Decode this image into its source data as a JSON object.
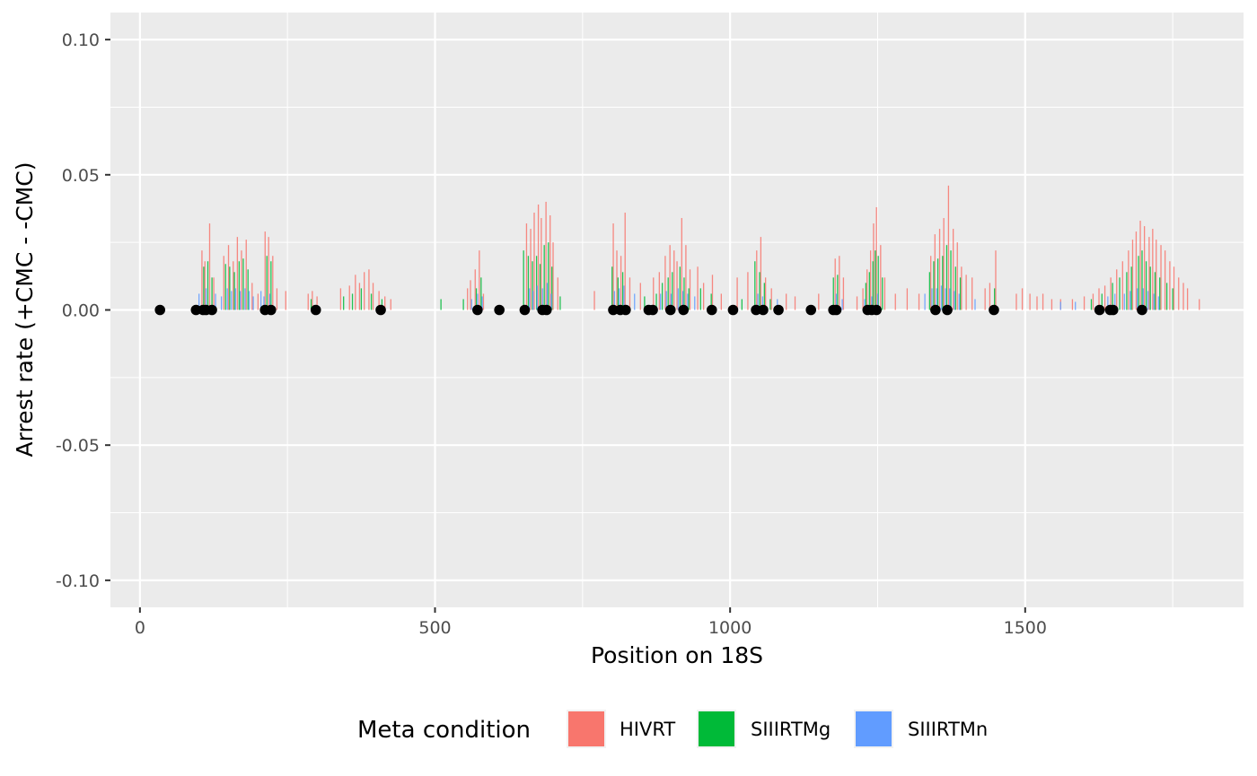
{
  "chart_data": {
    "type": "bar",
    "title": "",
    "xlabel": "Position on 18S",
    "ylabel": "Arrest rate (+CMC - -CMC)",
    "xlim": [
      -50,
      1870
    ],
    "ylim": [
      -0.11,
      0.11
    ],
    "x_ticks": [
      0,
      500,
      1000,
      1500
    ],
    "x_tick_labels": [
      "0",
      "500",
      "1000",
      "1500"
    ],
    "y_ticks": [
      -0.1,
      -0.05,
      0.0,
      0.05,
      0.1
    ],
    "y_tick_labels": [
      "-0.10",
      "-0.05",
      "0.00",
      "0.05",
      "0.10"
    ],
    "grid": true,
    "legend": {
      "title": "Meta condition",
      "position": "bottom",
      "entries": [
        {
          "name": "HIVRT",
          "color": "#F8766D"
        },
        {
          "name": "SIIIRTMg",
          "color": "#00BA38"
        },
        {
          "name": "SIIIRTMn",
          "color": "#619CFF"
        }
      ]
    },
    "series": [
      {
        "name": "HIVRT",
        "color": "#F8766D",
        "points": [
          [
            105,
            0.022
          ],
          [
            110,
            0.018
          ],
          [
            118,
            0.032
          ],
          [
            125,
            0.012
          ],
          [
            142,
            0.02
          ],
          [
            150,
            0.024
          ],
          [
            158,
            0.018
          ],
          [
            165,
            0.027
          ],
          [
            172,
            0.022
          ],
          [
            180,
            0.026
          ],
          [
            190,
            0.01
          ],
          [
            200,
            0.006
          ],
          [
            212,
            0.029
          ],
          [
            218,
            0.027
          ],
          [
            225,
            0.02
          ],
          [
            232,
            0.008
          ],
          [
            247,
            0.007
          ],
          [
            285,
            0.006
          ],
          [
            292,
            0.007
          ],
          [
            300,
            0.005
          ],
          [
            340,
            0.008
          ],
          [
            355,
            0.009
          ],
          [
            365,
            0.013
          ],
          [
            372,
            0.01
          ],
          [
            380,
            0.014
          ],
          [
            388,
            0.015
          ],
          [
            395,
            0.01
          ],
          [
            405,
            0.007
          ],
          [
            415,
            0.005
          ],
          [
            425,
            0.004
          ],
          [
            555,
            0.008
          ],
          [
            560,
            0.011
          ],
          [
            568,
            0.015
          ],
          [
            575,
            0.022
          ],
          [
            582,
            0.006
          ],
          [
            655,
            0.032
          ],
          [
            662,
            0.03
          ],
          [
            668,
            0.036
          ],
          [
            675,
            0.039
          ],
          [
            680,
            0.034
          ],
          [
            688,
            0.04
          ],
          [
            695,
            0.035
          ],
          [
            700,
            0.025
          ],
          [
            708,
            0.012
          ],
          [
            770,
            0.007
          ],
          [
            802,
            0.032
          ],
          [
            808,
            0.022
          ],
          [
            815,
            0.02
          ],
          [
            822,
            0.036
          ],
          [
            830,
            0.012
          ],
          [
            848,
            0.01
          ],
          [
            870,
            0.012
          ],
          [
            880,
            0.014
          ],
          [
            890,
            0.02
          ],
          [
            898,
            0.024
          ],
          [
            905,
            0.022
          ],
          [
            910,
            0.018
          ],
          [
            918,
            0.034
          ],
          [
            925,
            0.024
          ],
          [
            932,
            0.015
          ],
          [
            945,
            0.016
          ],
          [
            955,
            0.01
          ],
          [
            970,
            0.013
          ],
          [
            985,
            0.006
          ],
          [
            1012,
            0.012
          ],
          [
            1030,
            0.014
          ],
          [
            1045,
            0.022
          ],
          [
            1052,
            0.027
          ],
          [
            1060,
            0.012
          ],
          [
            1070,
            0.008
          ],
          [
            1095,
            0.006
          ],
          [
            1110,
            0.005
          ],
          [
            1150,
            0.006
          ],
          [
            1178,
            0.019
          ],
          [
            1185,
            0.02
          ],
          [
            1192,
            0.012
          ],
          [
            1215,
            0.005
          ],
          [
            1225,
            0.008
          ],
          [
            1232,
            0.015
          ],
          [
            1238,
            0.022
          ],
          [
            1243,
            0.032
          ],
          [
            1248,
            0.038
          ],
          [
            1255,
            0.024
          ],
          [
            1262,
            0.012
          ],
          [
            1280,
            0.006
          ],
          [
            1300,
            0.008
          ],
          [
            1320,
            0.006
          ],
          [
            1340,
            0.02
          ],
          [
            1347,
            0.028
          ],
          [
            1355,
            0.03
          ],
          [
            1362,
            0.034
          ],
          [
            1370,
            0.046
          ],
          [
            1378,
            0.03
          ],
          [
            1385,
            0.025
          ],
          [
            1392,
            0.016
          ],
          [
            1400,
            0.013
          ],
          [
            1410,
            0.012
          ],
          [
            1432,
            0.008
          ],
          [
            1440,
            0.01
          ],
          [
            1450,
            0.022
          ],
          [
            1485,
            0.006
          ],
          [
            1495,
            0.008
          ],
          [
            1508,
            0.006
          ],
          [
            1520,
            0.005
          ],
          [
            1530,
            0.006
          ],
          [
            1545,
            0.004
          ],
          [
            1560,
            0.004
          ],
          [
            1580,
            0.004
          ],
          [
            1600,
            0.005
          ],
          [
            1615,
            0.006
          ],
          [
            1625,
            0.008
          ],
          [
            1635,
            0.009
          ],
          [
            1645,
            0.012
          ],
          [
            1655,
            0.015
          ],
          [
            1665,
            0.018
          ],
          [
            1675,
            0.022
          ],
          [
            1682,
            0.026
          ],
          [
            1688,
            0.029
          ],
          [
            1695,
            0.033
          ],
          [
            1702,
            0.031
          ],
          [
            1710,
            0.027
          ],
          [
            1716,
            0.03
          ],
          [
            1722,
            0.026
          ],
          [
            1730,
            0.024
          ],
          [
            1737,
            0.022
          ],
          [
            1745,
            0.018
          ],
          [
            1752,
            0.016
          ],
          [
            1760,
            0.012
          ],
          [
            1768,
            0.01
          ],
          [
            1775,
            0.008
          ],
          [
            1795,
            0.004
          ]
        ]
      },
      {
        "name": "SIIIRTMg",
        "color": "#00BA38",
        "points": [
          [
            108,
            0.016
          ],
          [
            115,
            0.018
          ],
          [
            122,
            0.012
          ],
          [
            145,
            0.017
          ],
          [
            152,
            0.016
          ],
          [
            160,
            0.014
          ],
          [
            168,
            0.018
          ],
          [
            175,
            0.019
          ],
          [
            183,
            0.015
          ],
          [
            215,
            0.02
          ],
          [
            222,
            0.018
          ],
          [
            290,
            0.004
          ],
          [
            345,
            0.005
          ],
          [
            360,
            0.006
          ],
          [
            375,
            0.008
          ],
          [
            392,
            0.006
          ],
          [
            410,
            0.004
          ],
          [
            510,
            0.004
          ],
          [
            548,
            0.004
          ],
          [
            570,
            0.008
          ],
          [
            578,
            0.012
          ],
          [
            650,
            0.022
          ],
          [
            658,
            0.02
          ],
          [
            665,
            0.018
          ],
          [
            672,
            0.02
          ],
          [
            678,
            0.017
          ],
          [
            685,
            0.024
          ],
          [
            692,
            0.025
          ],
          [
            698,
            0.016
          ],
          [
            712,
            0.005
          ],
          [
            800,
            0.016
          ],
          [
            810,
            0.012
          ],
          [
            818,
            0.014
          ],
          [
            855,
            0.005
          ],
          [
            875,
            0.006
          ],
          [
            885,
            0.01
          ],
          [
            895,
            0.012
          ],
          [
            902,
            0.014
          ],
          [
            915,
            0.016
          ],
          [
            922,
            0.012
          ],
          [
            930,
            0.008
          ],
          [
            950,
            0.008
          ],
          [
            968,
            0.006
          ],
          [
            1020,
            0.004
          ],
          [
            1042,
            0.018
          ],
          [
            1050,
            0.014
          ],
          [
            1058,
            0.01
          ],
          [
            1068,
            0.004
          ],
          [
            1175,
            0.012
          ],
          [
            1182,
            0.013
          ],
          [
            1230,
            0.01
          ],
          [
            1236,
            0.014
          ],
          [
            1242,
            0.018
          ],
          [
            1246,
            0.022
          ],
          [
            1251,
            0.02
          ],
          [
            1258,
            0.012
          ],
          [
            1338,
            0.014
          ],
          [
            1345,
            0.018
          ],
          [
            1352,
            0.019
          ],
          [
            1360,
            0.02
          ],
          [
            1367,
            0.024
          ],
          [
            1374,
            0.022
          ],
          [
            1382,
            0.016
          ],
          [
            1390,
            0.012
          ],
          [
            1448,
            0.008
          ],
          [
            1612,
            0.004
          ],
          [
            1630,
            0.006
          ],
          [
            1648,
            0.01
          ],
          [
            1660,
            0.012
          ],
          [
            1672,
            0.014
          ],
          [
            1680,
            0.016
          ],
          [
            1692,
            0.02
          ],
          [
            1698,
            0.022
          ],
          [
            1705,
            0.018
          ],
          [
            1712,
            0.016
          ],
          [
            1720,
            0.014
          ],
          [
            1728,
            0.012
          ],
          [
            1740,
            0.01
          ],
          [
            1750,
            0.008
          ]
        ]
      },
      {
        "name": "SIIIRTMn",
        "color": "#619CFF",
        "points": [
          [
            100,
            0.006
          ],
          [
            112,
            0.008
          ],
          [
            128,
            0.006
          ],
          [
            138,
            0.005
          ],
          [
            148,
            0.008
          ],
          [
            155,
            0.007
          ],
          [
            162,
            0.008
          ],
          [
            170,
            0.007
          ],
          [
            178,
            0.008
          ],
          [
            185,
            0.007
          ],
          [
            192,
            0.005
          ],
          [
            205,
            0.007
          ],
          [
            210,
            0.005
          ],
          [
            220,
            0.006
          ],
          [
            562,
            0.004
          ],
          [
            572,
            0.006
          ],
          [
            580,
            0.005
          ],
          [
            660,
            0.008
          ],
          [
            666,
            0.007
          ],
          [
            673,
            0.009
          ],
          [
            682,
            0.008
          ],
          [
            690,
            0.01
          ],
          [
            697,
            0.006
          ],
          [
            804,
            0.007
          ],
          [
            812,
            0.008
          ],
          [
            820,
            0.009
          ],
          [
            838,
            0.006
          ],
          [
            882,
            0.006
          ],
          [
            892,
            0.007
          ],
          [
            900,
            0.006
          ],
          [
            912,
            0.008
          ],
          [
            920,
            0.007
          ],
          [
            928,
            0.006
          ],
          [
            940,
            0.005
          ],
          [
            1047,
            0.006
          ],
          [
            1055,
            0.005
          ],
          [
            1080,
            0.004
          ],
          [
            1180,
            0.006
          ],
          [
            1190,
            0.004
          ],
          [
            1228,
            0.004
          ],
          [
            1240,
            0.005
          ],
          [
            1250,
            0.006
          ],
          [
            1330,
            0.006
          ],
          [
            1342,
            0.008
          ],
          [
            1350,
            0.008
          ],
          [
            1358,
            0.009
          ],
          [
            1365,
            0.008
          ],
          [
            1372,
            0.008
          ],
          [
            1380,
            0.007
          ],
          [
            1388,
            0.006
          ],
          [
            1415,
            0.004
          ],
          [
            1560,
            0.003
          ],
          [
            1585,
            0.003
          ],
          [
            1640,
            0.005
          ],
          [
            1652,
            0.006
          ],
          [
            1668,
            0.006
          ],
          [
            1678,
            0.007
          ],
          [
            1690,
            0.008
          ],
          [
            1700,
            0.008
          ],
          [
            1708,
            0.007
          ],
          [
            1718,
            0.006
          ],
          [
            1726,
            0.005
          ]
        ]
      },
      {
        "name": "",
        "type": "scatter",
        "color": "#000000",
        "points": [
          [
            34,
            0
          ],
          [
            95,
            0
          ],
          [
            107,
            0
          ],
          [
            112,
            0
          ],
          [
            122,
            0
          ],
          [
            212,
            0
          ],
          [
            222,
            0
          ],
          [
            298,
            0
          ],
          [
            408,
            0
          ],
          [
            572,
            0
          ],
          [
            609,
            0
          ],
          [
            652,
            0
          ],
          [
            682,
            0
          ],
          [
            689,
            0
          ],
          [
            802,
            0
          ],
          [
            814,
            0
          ],
          [
            823,
            0
          ],
          [
            862,
            0
          ],
          [
            869,
            0
          ],
          [
            899,
            0
          ],
          [
            921,
            0
          ],
          [
            969,
            0
          ],
          [
            1005,
            0
          ],
          [
            1044,
            0
          ],
          [
            1056,
            0
          ],
          [
            1082,
            0
          ],
          [
            1137,
            0
          ],
          [
            1175,
            0
          ],
          [
            1180,
            0
          ],
          [
            1233,
            0
          ],
          [
            1240,
            0
          ],
          [
            1248,
            0
          ],
          [
            1348,
            0
          ],
          [
            1368,
            0
          ],
          [
            1447,
            0
          ],
          [
            1626,
            0
          ],
          [
            1644,
            0
          ],
          [
            1649,
            0
          ],
          [
            1698,
            0
          ]
        ]
      }
    ]
  }
}
